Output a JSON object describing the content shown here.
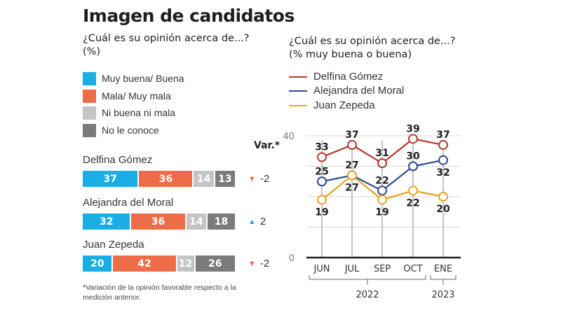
{
  "title": "Imagen de candidatos",
  "left_panel": {
    "subtitle_line1": "¿Cuál es su opinión acerca de...?",
    "subtitle_line2": "(%)",
    "var_header": "Var.*",
    "footnote_line1": "*Variación de la opinión favorable respecto a la",
    "footnote_line2": "medición anterior."
  },
  "right_panel": {
    "subtitle_line1": "¿Cuál es su opinión acerca de...?",
    "subtitle_line2": "(% muy buena o buena)"
  },
  "colors": {
    "muy_buena": "#1aaee5",
    "mala": "#ee6c48",
    "ni_buena": "#c4c4c4",
    "no_conoce": "#7b7b7b",
    "delfina": "#b03a2e",
    "alejandra": "#2f4a8f",
    "juan": "#e8a323",
    "up": "#1aaee5",
    "down": "#ee6c48"
  },
  "chart_data": [
    {
      "type": "bar",
      "orientation": "horizontal-stacked",
      "title": "¿Cuál es su opinión acerca de...? (%)",
      "categories": [
        "Delfina Gómez",
        "Alejandra del Moral",
        "Juan Zepeda"
      ],
      "series": [
        {
          "name": "Muy buena/ Buena",
          "values": [
            37,
            32,
            20
          ]
        },
        {
          "name": "Mala/ Muy mala",
          "values": [
            36,
            36,
            42
          ]
        },
        {
          "name": "Ni buena ni mala",
          "values": [
            14,
            14,
            12
          ]
        },
        {
          "name": "No le conoce",
          "values": [
            13,
            18,
            26
          ]
        }
      ],
      "variation": [
        {
          "direction": "down",
          "label": "-2"
        },
        {
          "direction": "up",
          "label": "2"
        },
        {
          "direction": "down",
          "label": "-2"
        }
      ],
      "legend": "top-left"
    },
    {
      "type": "line",
      "title": "¿Cuál es su opinión acerca de...? (% muy buena o buena)",
      "x": [
        "JUN",
        "JUL",
        "SEP",
        "OCT",
        "ENE"
      ],
      "year_groups": [
        {
          "label": "2022",
          "from": 0,
          "to": 3
        },
        {
          "label": "2023",
          "from": 4,
          "to": 4
        }
      ],
      "series": [
        {
          "name": "Delfina Gómez",
          "values": [
            33,
            37,
            31,
            39,
            37
          ]
        },
        {
          "name": "Alejandra del Moral",
          "values": [
            25,
            27,
            22,
            30,
            32
          ]
        },
        {
          "name": "Juan Zepeda",
          "values": [
            19,
            27,
            19,
            22,
            20
          ]
        }
      ],
      "label_positions": [
        [
          "above",
          "above",
          "above",
          "above",
          "above"
        ],
        [
          "above",
          "above",
          "above",
          "above",
          "below"
        ],
        [
          "below",
          "below",
          "below",
          "below",
          "below"
        ]
      ],
      "y_ticks": [
        0,
        40
      ],
      "gridlines": [
        10,
        20,
        30,
        40
      ],
      "ylim": [
        0,
        40
      ],
      "grid": true,
      "legend": "top-left"
    }
  ]
}
